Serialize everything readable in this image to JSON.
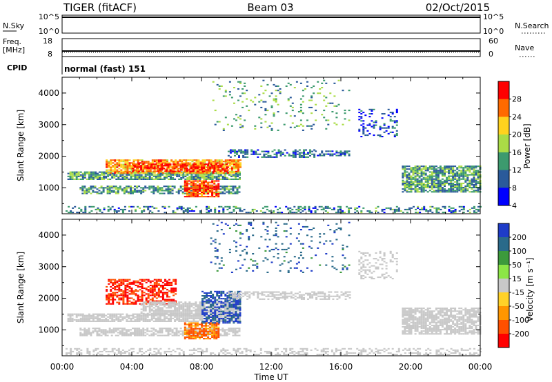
{
  "header": {
    "station": "TIGER (fitACF)",
    "beam": "Beam 03",
    "date": "02/Oct/2015"
  },
  "status_panels": {
    "nsky_label": "N.Sky",
    "nsearch_label": "N.Search",
    "nsky_ticks": [
      "10^5",
      "10^0"
    ],
    "nsearch_ticks": [
      "10^5",
      "10^0"
    ],
    "freq_label_1": "Freq.",
    "freq_label_2": "[MHz]",
    "freq_ticks": [
      "18",
      "8"
    ],
    "nave_label": "Nave",
    "nave_ticks": [
      "60",
      "0"
    ],
    "cpid_label": "CPID",
    "cpid_value": "normal (fast) 151"
  },
  "chart_data": [
    {
      "type": "heatmap",
      "name": "power",
      "ylabel": "Slant Range [km]",
      "xlabel": "Time UT",
      "xlim": [
        0,
        24
      ],
      "ylim": [
        180,
        4500
      ],
      "x_ticks": [
        "00:00",
        "04:00",
        "08:00",
        "12:00",
        "16:00",
        "20:00",
        "00:00"
      ],
      "y_ticks": [
        1000,
        2000,
        3000,
        4000
      ],
      "colorbar": {
        "label": "Power [dB]",
        "ticks": [
          "28",
          "24",
          "20",
          "16",
          "12",
          "8",
          "4"
        ],
        "colors": [
          "#ff0000",
          "#ff6a00",
          "#ffd21e",
          "#aadc46",
          "#3c9a6e",
          "#2a5a9a",
          "#0000ff"
        ]
      },
      "scatter_regions": [
        {
          "t0": 0.2,
          "t1": 24,
          "r0": 200,
          "r1": 400,
          "level": 10,
          "density": 0.35
        },
        {
          "t0": 0.3,
          "t1": 10.2,
          "r0": 1250,
          "r1": 1500,
          "level": 12,
          "density": 0.8
        },
        {
          "t0": 1.0,
          "t1": 10.2,
          "r0": 800,
          "r1": 1050,
          "level": 11,
          "density": 0.7
        },
        {
          "t0": 2.5,
          "t1": 10.2,
          "r0": 1450,
          "r1": 1900,
          "level": 22,
          "density": 0.8
        },
        {
          "t0": 7.0,
          "t1": 9.0,
          "r0": 700,
          "r1": 1200,
          "level": 26,
          "density": 0.8
        },
        {
          "t0": 4.0,
          "t1": 9.5,
          "r0": 1500,
          "r1": 1750,
          "level": 28,
          "density": 0.6
        },
        {
          "t0": 9.5,
          "t1": 14.5,
          "r0": 1950,
          "r1": 2200,
          "level": 9,
          "density": 0.5
        },
        {
          "t0": 14.5,
          "t1": 16.5,
          "r0": 2000,
          "r1": 2150,
          "level": 8,
          "density": 0.5
        },
        {
          "t0": 17.0,
          "t1": 19.2,
          "r0": 2600,
          "r1": 3500,
          "level": 7,
          "density": 0.25
        },
        {
          "t0": 19.5,
          "t1": 24,
          "r0": 850,
          "r1": 1700,
          "level": 12,
          "density": 0.75
        },
        {
          "t0": 8.5,
          "t1": 16.5,
          "r0": 2800,
          "r1": 4400,
          "level": 12,
          "density": 0.08
        }
      ]
    },
    {
      "type": "heatmap",
      "name": "velocity",
      "ylabel": "Slant Range [km]",
      "xlabel": "Time UT",
      "xlim": [
        0,
        24
      ],
      "ylim": [
        180,
        4500
      ],
      "x_ticks": [
        "00:00",
        "04:00",
        "08:00",
        "12:00",
        "16:00",
        "20:00",
        "00:00"
      ],
      "y_ticks": [
        1000,
        2000,
        3000,
        4000
      ],
      "colorbar": {
        "label": "Velocity [m s⁻¹]",
        "ticks": [
          "200",
          "100",
          "50",
          "15",
          "-15",
          "-50",
          "-100",
          "-200"
        ],
        "colors": [
          "#1e3cc8",
          "#2a6a8a",
          "#3c9a3c",
          "#8ce646",
          "#c8c8c8",
          "#ffd228",
          "#ff9600",
          "#ff5000",
          "#ff0000"
        ]
      },
      "scatter_regions": [
        {
          "t0": 0.2,
          "t1": 24,
          "r0": 200,
          "r1": 400,
          "level": 0,
          "density": 0.35
        },
        {
          "t0": 0.3,
          "t1": 10.2,
          "r0": 1250,
          "r1": 1500,
          "level": 0,
          "density": 0.8
        },
        {
          "t0": 1.0,
          "t1": 10.2,
          "r0": 800,
          "r1": 1050,
          "level": 0,
          "density": 0.7
        },
        {
          "t0": 2.5,
          "t1": 6.5,
          "r0": 1800,
          "r1": 2600,
          "level": -160,
          "density": 0.6
        },
        {
          "t0": 4.5,
          "t1": 10.2,
          "r0": 1450,
          "r1": 1900,
          "level": 0,
          "density": 0.8
        },
        {
          "t0": 7.0,
          "t1": 9.0,
          "r0": 700,
          "r1": 1200,
          "level": -80,
          "density": 0.8
        },
        {
          "t0": 8.0,
          "t1": 10.2,
          "r0": 1200,
          "r1": 2200,
          "level": 160,
          "density": 0.6
        },
        {
          "t0": 9.5,
          "t1": 16.5,
          "r0": 1950,
          "r1": 2200,
          "level": 0,
          "density": 0.5
        },
        {
          "t0": 17.0,
          "t1": 19.2,
          "r0": 2600,
          "r1": 3500,
          "level": 0,
          "density": 0.25
        },
        {
          "t0": 19.5,
          "t1": 24,
          "r0": 850,
          "r1": 1700,
          "level": 0,
          "density": 0.75
        },
        {
          "t0": 8.5,
          "t1": 16.5,
          "r0": 2800,
          "r1": 4400,
          "level": 120,
          "density": 0.08
        }
      ]
    }
  ]
}
